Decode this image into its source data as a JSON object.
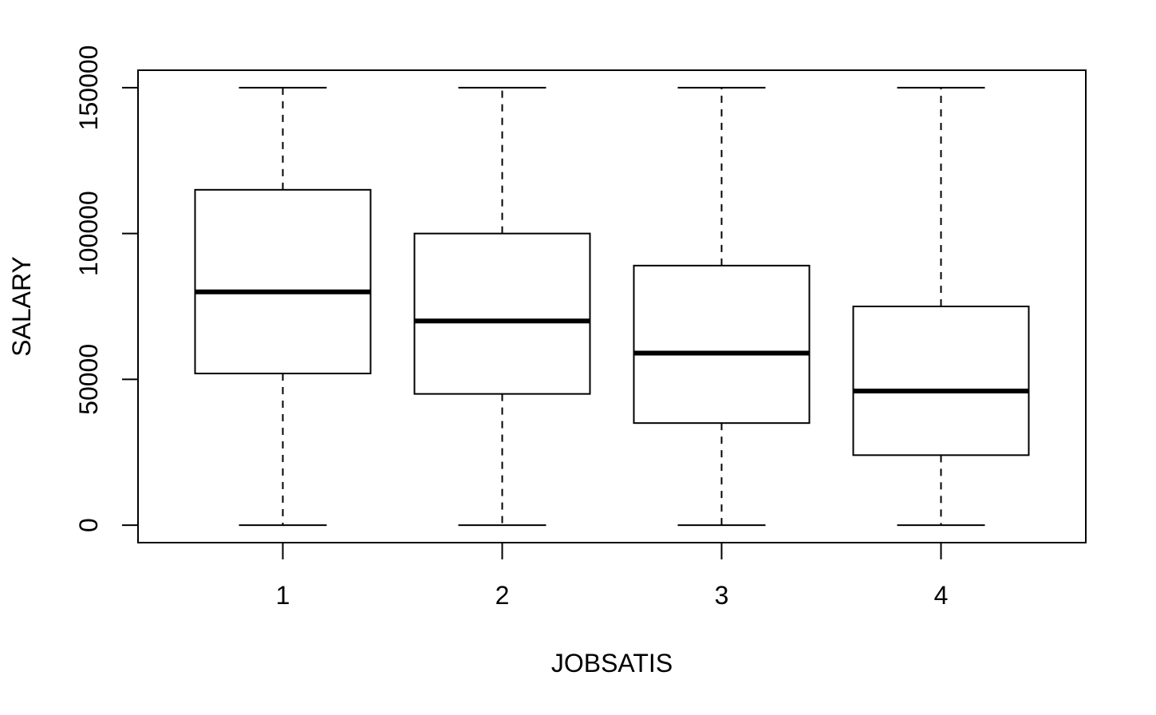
{
  "chart_data": {
    "type": "boxplot",
    "title": "",
    "xlabel": "JOBSATIS",
    "ylabel": "SALARY",
    "categories": [
      "1",
      "2",
      "3",
      "4"
    ],
    "y_ticks": [
      0,
      50000,
      100000,
      150000
    ],
    "y_tick_labels": [
      "0",
      "50000",
      "100000",
      "150000"
    ],
    "ylim": [
      -6000,
      156000
    ],
    "grid": false,
    "boxes": [
      {
        "category": "1",
        "whisker_low": 0,
        "q1": 52000,
        "median": 80000,
        "q3": 115000,
        "whisker_high": 150000
      },
      {
        "category": "2",
        "whisker_low": 0,
        "q1": 45000,
        "median": 70000,
        "q3": 100000,
        "whisker_high": 150000
      },
      {
        "category": "3",
        "whisker_low": 0,
        "q1": 35000,
        "median": 59000,
        "q3": 89000,
        "whisker_high": 150000
      },
      {
        "category": "4",
        "whisker_low": 0,
        "q1": 24000,
        "median": 46000,
        "q3": 75000,
        "whisker_high": 150000
      }
    ]
  },
  "colors": {
    "stroke": "#000000",
    "box_fill": "#ffffff",
    "background": "#ffffff"
  }
}
